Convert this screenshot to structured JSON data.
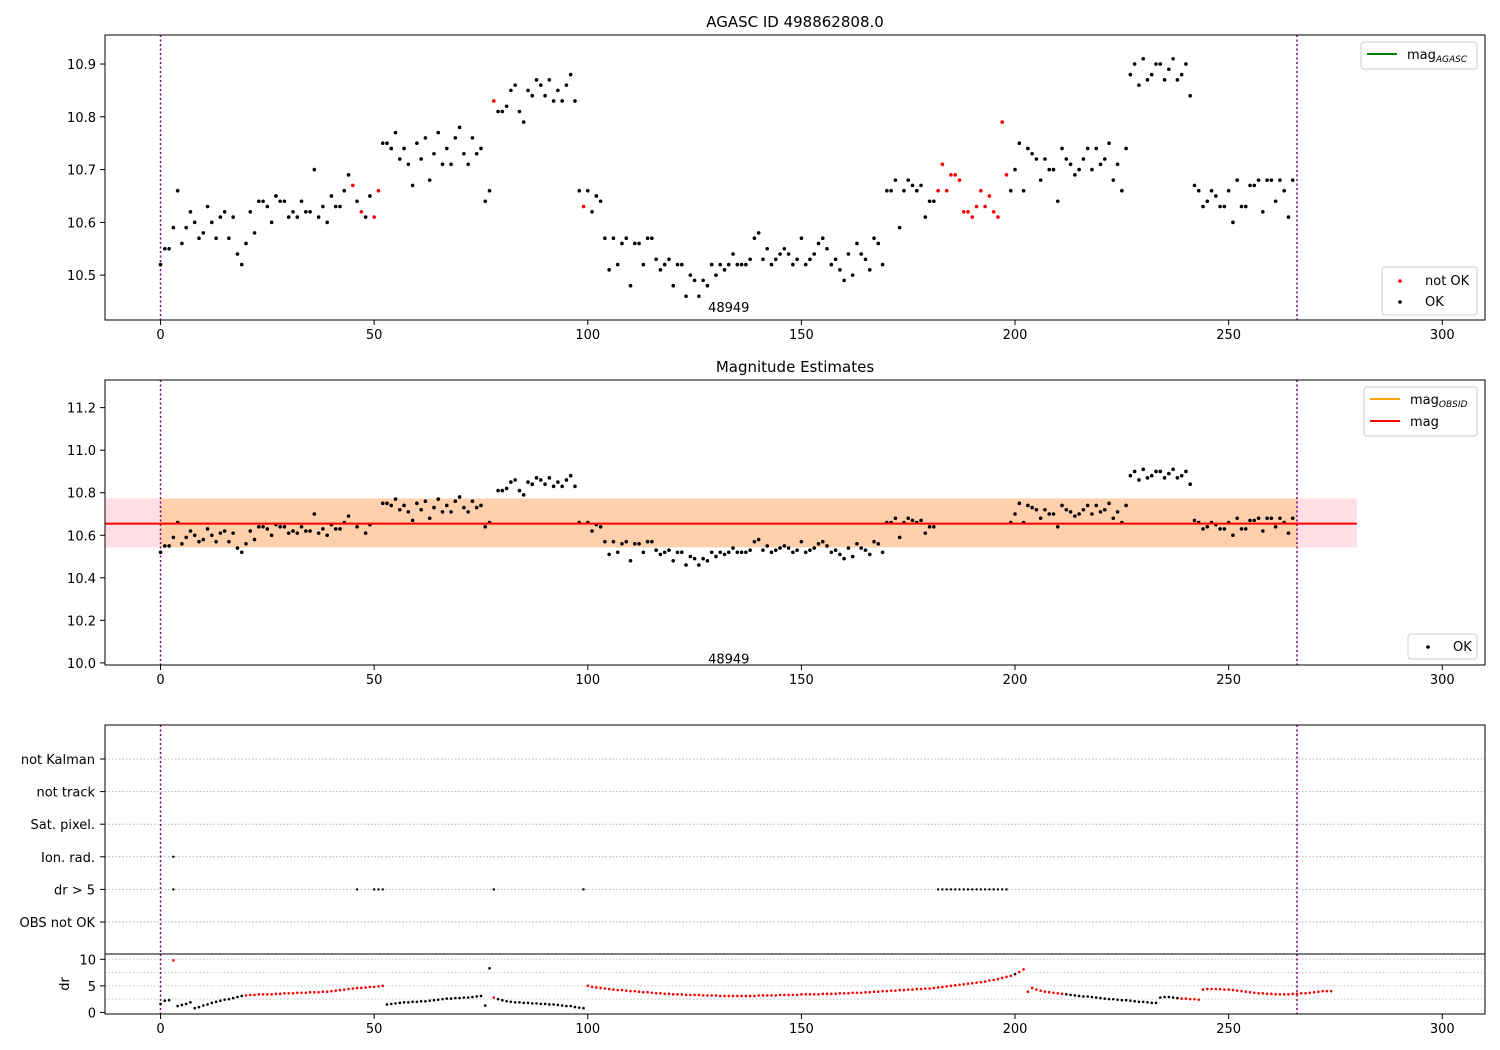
{
  "chart_data": [
    {
      "type": "scatter",
      "title": "AGASC ID 498862808.0",
      "xlim": [
        -13,
        310
      ],
      "ylim": [
        10.415,
        10.955
      ],
      "xticks": [
        "0",
        "50",
        "100",
        "150",
        "200",
        "250",
        "300"
      ],
      "yticks": [
        "10.5",
        "10.6",
        "10.7",
        "10.8",
        "10.9"
      ],
      "vlines": [
        0,
        266
      ],
      "annotation": {
        "text": "48949",
        "x": 133,
        "y": 10.44
      },
      "legend_upper": [
        {
          "label": "mag",
          "sub": "AGASC",
          "color": "#008000"
        }
      ],
      "legend_lower": [
        {
          "label": "not OK",
          "color": "#ff0000"
        },
        {
          "label": "OK",
          "color": "#000000"
        }
      ]
    },
    {
      "type": "scatter",
      "title": "Magnitude Estimates",
      "xlim": [
        -13,
        310
      ],
      "ylim": [
        9.99,
        11.33
      ],
      "xticks": [
        "0",
        "50",
        "100",
        "150",
        "200",
        "250",
        "300"
      ],
      "yticks": [
        "10.0",
        "10.2",
        "10.4",
        "10.6",
        "10.8",
        "11.0",
        "11.2"
      ],
      "vlines": [
        0,
        266
      ],
      "mag_line": 10.655,
      "band_outer": [
        10.543,
        10.773
      ],
      "band_inner": [
        10.543,
        10.773
      ],
      "band_x": [
        -13,
        280
      ],
      "annotation": {
        "text": "48949",
        "x": 133,
        "y": 10.02
      },
      "legend_upper": [
        {
          "label": "mag",
          "sub": "OBSID",
          "color": "#ffa500"
        },
        {
          "label": "mag",
          "sub": "",
          "color": "#ff0000"
        }
      ],
      "legend_lower": [
        {
          "label": "OK",
          "color": "#000000"
        }
      ]
    },
    {
      "type": "scatter",
      "title": "",
      "xlim": [
        -13,
        310
      ],
      "flag_rows": [
        "not Kalman",
        "not track",
        "Sat. pixel.",
        "Ion. rad.",
        "dr > 5",
        "OBS not OK"
      ],
      "vlines": [
        0,
        266
      ],
      "ion_rad_x": [
        3
      ],
      "dr5_x": [
        3,
        46,
        50,
        51,
        52,
        78,
        99,
        182,
        183,
        184,
        185,
        186,
        187,
        188,
        189,
        190,
        191,
        192,
        193,
        194,
        195,
        196,
        197,
        198
      ]
    },
    {
      "type": "scatter",
      "title": "",
      "ylabel": "dr",
      "xlim": [
        -13,
        310
      ],
      "ylim": [
        -0.3,
        11
      ],
      "xticks": [
        "0",
        "50",
        "100",
        "150",
        "200",
        "250",
        "300"
      ],
      "yticks": [
        "0",
        "5",
        "10"
      ],
      "vlines": [
        0,
        266
      ]
    }
  ]
}
